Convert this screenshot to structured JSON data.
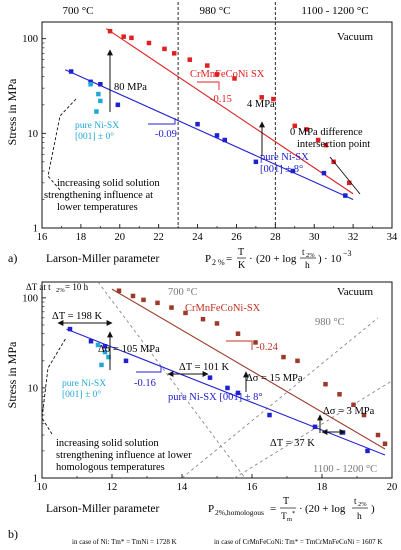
{
  "chart_data": [
    {
      "type": "scatter",
      "panel_label": "a)",
      "title": "",
      "xlabel": "Larson-Miller parameter",
      "xlabel_formula": "P2 % = T/K · (20 + log t2%/h) · 10^-3",
      "ylabel": "Stress in MPa",
      "xlim": [
        16,
        34
      ],
      "ylim": [
        1,
        150
      ],
      "yscale": "log",
      "xticks": [
        16,
        18,
        20,
        22,
        24,
        26,
        28,
        30,
        32,
        34
      ],
      "yticks": [
        1,
        10,
        100
      ],
      "ytick_labels": [
        "1",
        "10",
        "100"
      ],
      "region_boundaries": [
        23,
        28
      ],
      "region_labels": [
        "700 °C",
        "980 °C",
        "1100 - 1200 °C"
      ],
      "atmosphere": "Vacuum",
      "series": [
        {
          "name": "CrMnFeCoNi SX",
          "color": "#e02020",
          "points": [
            [
              19.5,
              120
            ],
            [
              20.2,
              105
            ],
            [
              20.6,
              102
            ],
            [
              21.5,
              90
            ],
            [
              22.3,
              78
            ],
            [
              22.8,
              70
            ],
            [
              23.6,
              60
            ],
            [
              24.5,
              52
            ],
            [
              25.0,
              42
            ],
            [
              25.9,
              38
            ],
            [
              27.3,
              24
            ],
            [
              27.9,
              23
            ],
            [
              29.0,
              12
            ],
            [
              29.6,
              11
            ],
            [
              30.2,
              8.5
            ],
            [
              30.6,
              7.5
            ],
            [
              31.0,
              5.0
            ],
            [
              31.8,
              3.0
            ]
          ],
          "fit": [
            [
              19.3,
              128
            ],
            [
              32.0,
              2.3
            ]
          ]
        },
        {
          "name": "pure Ni-SX [001] ± 8°",
          "color": "#2020d0",
          "points": [
            [
              17.5,
              45
            ],
            [
              18.5,
              35
            ],
            [
              19.0,
              33
            ],
            [
              19.9,
              20
            ],
            [
              24.0,
              12.5
            ],
            [
              25.0,
              9.5
            ],
            [
              25.4,
              8.5
            ],
            [
              27.0,
              5.0
            ],
            [
              28.9,
              4.0
            ],
            [
              30.5,
              3.8
            ],
            [
              31.6,
              2.2
            ]
          ],
          "fit": [
            [
              17.2,
              47
            ],
            [
              32.0,
              2.0
            ]
          ]
        },
        {
          "name": "pure Ni-SX [001] ± 0°",
          "color": "#20a8d8",
          "points": [
            [
              18.5,
              33
            ],
            [
              18.9,
              26
            ],
            [
              19.0,
              22
            ],
            [
              18.8,
              17
            ]
          ]
        }
      ],
      "annotations": [
        "80 MPa",
        "-0.15",
        "4 MPa",
        "-0.09",
        "0 MPa difference",
        "intersection point",
        "increasing solid solution",
        "strengthening influence at",
        "lower temperatures"
      ]
    },
    {
      "type": "scatter",
      "panel_label": "b)",
      "title": "",
      "xlabel": "Larson-Miller parameter",
      "xlabel_formula": "P2%,homologous = T/Tm* · (20 + log t2%/h)",
      "ylabel": "Stress in MPa",
      "xlim": [
        10,
        20
      ],
      "ylim": [
        1,
        150
      ],
      "yscale": "log",
      "xticks": [
        10,
        12,
        14,
        16,
        18,
        20
      ],
      "yticks": [
        1,
        10,
        100
      ],
      "ytick_labels": [
        "1",
        "10",
        "100"
      ],
      "isotherm_labels": [
        "700 °C",
        "980 °C",
        "1100 - 1200 °C"
      ],
      "atmosphere": "Vacuum",
      "series": [
        {
          "name": "CrMnFeCoNi-SX",
          "color": "#9a3a2a",
          "points": [
            [
              12.2,
              120
            ],
            [
              12.6,
              105
            ],
            [
              12.9,
              95
            ],
            [
              13.3,
              88
            ],
            [
              13.7,
              78
            ],
            [
              14.1,
              68
            ],
            [
              14.6,
              58
            ],
            [
              15.0,
              52
            ],
            [
              15.6,
              40
            ],
            [
              16.1,
              32
            ],
            [
              16.9,
              22
            ],
            [
              17.3,
              20
            ],
            [
              18.1,
              11
            ],
            [
              18.5,
              8.5
            ],
            [
              18.9,
              6.5
            ],
            [
              19.2,
              5.0
            ],
            [
              19.6,
              3.0
            ],
            [
              19.8,
              2.4
            ]
          ],
          "fit": [
            [
              12.0,
              125
            ],
            [
              19.8,
              2.1
            ]
          ]
        },
        {
          "name": "pure Ni-SX [001] ± 8°",
          "color": "#2020d0",
          "points": [
            [
              10.8,
              45
            ],
            [
              11.4,
              33
            ],
            [
              11.8,
              29
            ],
            [
              12.4,
              20
            ],
            [
              14.8,
              13
            ],
            [
              15.3,
              10
            ],
            [
              15.6,
              8.8
            ],
            [
              16.5,
              5.0
            ],
            [
              17.8,
              3.7
            ],
            [
              18.6,
              3.2
            ],
            [
              19.3,
              2.0
            ]
          ],
          "fit": [
            [
              10.7,
              45
            ],
            [
              19.8,
              1.8
            ]
          ]
        },
        {
          "name": "pure Ni-SX [001] ± 0°",
          "color": "#20a8d8",
          "points": [
            [
              11.6,
              30
            ],
            [
              11.8,
              25
            ],
            [
              11.9,
              22
            ],
            [
              11.7,
              18
            ]
          ]
        }
      ],
      "annotations": [
        "ΔT at t2% = 10 h",
        "ΔT = 198 K",
        "Δσ = 105 MPa",
        "-0.24",
        "ΔT = 101 K",
        "Δσ = 15 MPa",
        "-0.16",
        "Δσ = 3 MPa",
        "ΔT = 37 K",
        "increasing solid solution",
        "strengthening influence at lower",
        "homologous temperatures"
      ],
      "footnote_ni": "in case of Ni: Tm* = TmNi = 1728 K",
      "footnote_cantor": "in case of CrMnFeCoNi: Tm* = TmCrMnFeCoNi = 1607 K"
    }
  ]
}
